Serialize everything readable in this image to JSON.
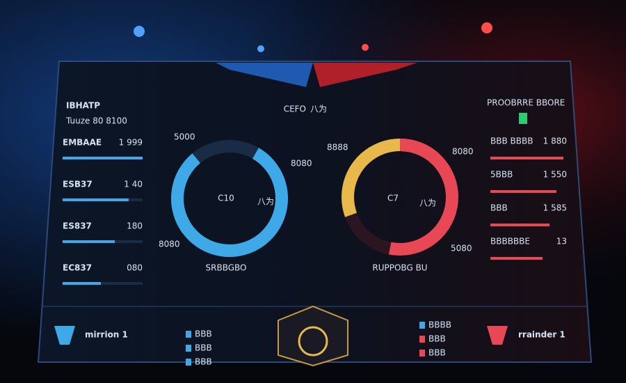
{
  "header": {
    "title": "CEFO",
    "title_suffix": "八为"
  },
  "left_panel": {
    "title": "IBHATP",
    "subtitle": "Tuuze 80 8100",
    "rows": [
      {
        "label": "EMBAAE",
        "value": "1 999"
      },
      {
        "label": "ESB37",
        "value": "1 40"
      },
      {
        "label": "ES837",
        "value": "180"
      },
      {
        "label": "EC837",
        "value": "080"
      }
    ]
  },
  "left_ring": {
    "label": "C10",
    "suffix": "八为",
    "callouts": [
      "5000",
      "8080",
      "8080"
    ],
    "caption": "SRBBGBO"
  },
  "right_ring": {
    "label": "C7",
    "suffix": "八为",
    "callouts": [
      "8888",
      "8080",
      "5080"
    ],
    "caption": "RUPPOBG BU"
  },
  "right_panel": {
    "title": "PROOBRRE BBORE",
    "rows": [
      {
        "label": "BBB BBBB",
        "value": "1 880"
      },
      {
        "label": "5BBB",
        "value": "1 550"
      },
      {
        "label": "BBB",
        "value": "1 585"
      },
      {
        "label": "BBBBBBE",
        "value": "13"
      }
    ]
  },
  "bottom": {
    "left_team": "mirrion 1",
    "right_team": "rrainder 1",
    "left_list": [
      "BBB",
      "BBB",
      "BBB"
    ],
    "right_list": [
      "BBBB",
      "BBB",
      "BBB"
    ]
  }
}
